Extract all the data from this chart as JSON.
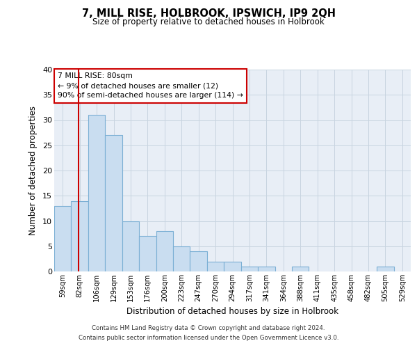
{
  "title": "7, MILL RISE, HOLBROOK, IPSWICH, IP9 2QH",
  "subtitle": "Size of property relative to detached houses in Holbrook",
  "xlabel": "Distribution of detached houses by size in Holbrook",
  "ylabel": "Number of detached properties",
  "categories": [
    "59sqm",
    "82sqm",
    "106sqm",
    "129sqm",
    "153sqm",
    "176sqm",
    "200sqm",
    "223sqm",
    "247sqm",
    "270sqm",
    "294sqm",
    "317sqm",
    "341sqm",
    "364sqm",
    "388sqm",
    "411sqm",
    "435sqm",
    "458sqm",
    "482sqm",
    "505sqm",
    "529sqm"
  ],
  "values": [
    13,
    14,
    31,
    27,
    10,
    7,
    8,
    5,
    4,
    2,
    2,
    1,
    1,
    0,
    1,
    0,
    0,
    0,
    0,
    1,
    0
  ],
  "bar_color": "#c9ddf0",
  "bar_edge_color": "#7bafd4",
  "grid_color": "#c8d4e0",
  "background_color": "#e8eef6",
  "property_line_color": "#cc0000",
  "annotation_text": "7 MILL RISE: 80sqm\n← 9% of detached houses are smaller (12)\n90% of semi-detached houses are larger (114) →",
  "annotation_box_color": "#cc0000",
  "footer_line1": "Contains HM Land Registry data © Crown copyright and database right 2024.",
  "footer_line2": "Contains public sector information licensed under the Open Government Licence v3.0.",
  "ylim": [
    0,
    40
  ],
  "yticks": [
    0,
    5,
    10,
    15,
    20,
    25,
    30,
    35,
    40
  ]
}
